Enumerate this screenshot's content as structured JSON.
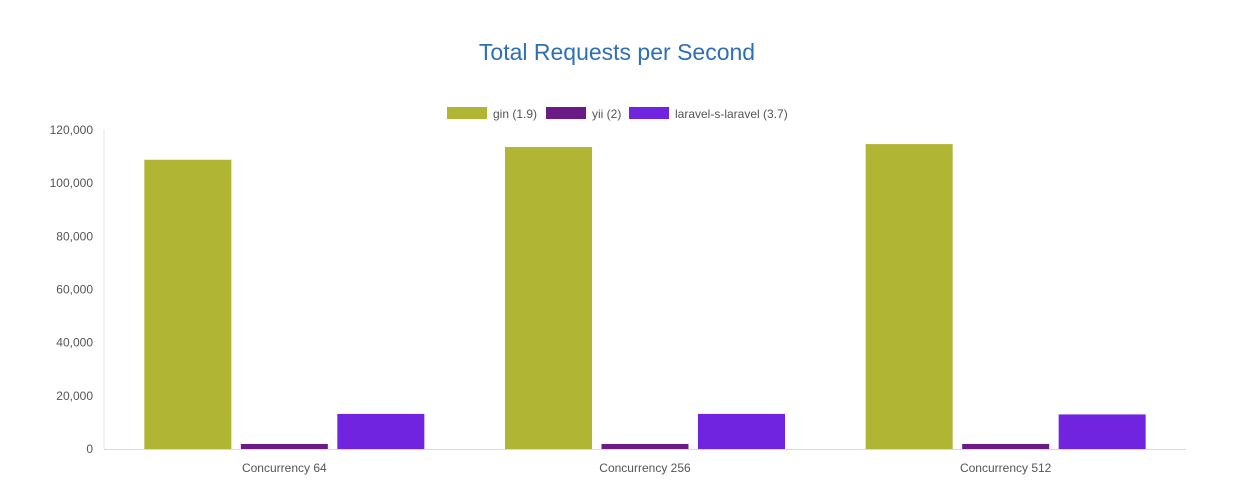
{
  "chart_data": {
    "type": "bar",
    "title": "Total Requests per Second",
    "xlabel": "",
    "ylabel": "",
    "categories": [
      "Concurrency 64",
      "Concurrency 256",
      "Concurrency 512"
    ],
    "series": [
      {
        "name": "gin (1.9)",
        "color": "#b0b534",
        "values": [
          108800,
          113600,
          114700
        ]
      },
      {
        "name": "yii (2)",
        "color": "#6a1b86",
        "values": [
          1900,
          1900,
          1900
        ]
      },
      {
        "name": "laravel-s-laravel (3.7)",
        "color": "#7024e0",
        "values": [
          13200,
          13200,
          13000
        ]
      }
    ],
    "ylim": [
      0,
      120000
    ],
    "yticks": [
      0,
      20000,
      40000,
      60000,
      80000,
      100000,
      120000
    ],
    "ytick_labels": [
      "0",
      "20,000",
      "40,000",
      "60,000",
      "80,000",
      "100,000",
      "120,000"
    ],
    "legend_position": "top-center",
    "grid": false
  }
}
